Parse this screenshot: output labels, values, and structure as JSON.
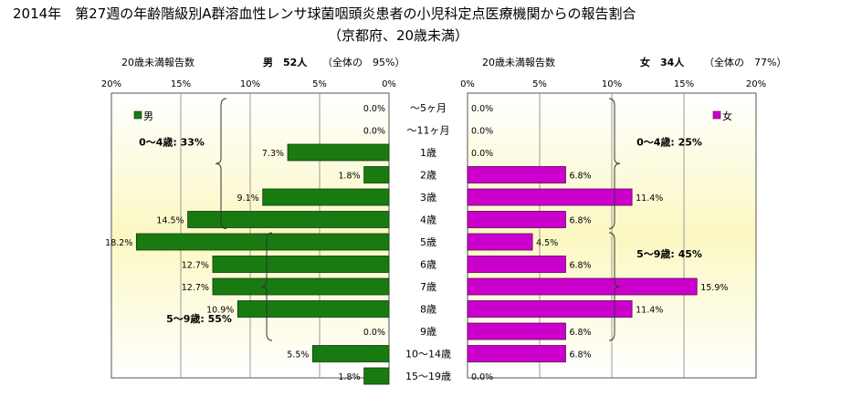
{
  "chart_data": {
    "type": "bar",
    "title": "2014年　第27週の年齢階級別A群溶血性レンサ球菌咽頭炎患者の小児科定点医療機関からの報告割合",
    "subtitle": "（京都府、20歳未満）",
    "categories": [
      "～5ヶ月",
      "～11ヶ月",
      "1歳",
      "2歳",
      "3歳",
      "4歳",
      "5歳",
      "6歳",
      "7歳",
      "8歳",
      "9歳",
      "10～14歳",
      "15～19歳"
    ],
    "xlim": [
      0,
      20
    ],
    "tick_values": [
      0,
      5,
      10,
      15,
      20
    ],
    "tick_labels_left": [
      "20%",
      "15%",
      "10%",
      "5%",
      "0%"
    ],
    "tick_labels_right": [
      "0%",
      "5%",
      "10%",
      "15%",
      "20%"
    ],
    "series": [
      {
        "name": "男",
        "side": "left",
        "color": "#1a7a12",
        "header_label": "20歳未満報告数",
        "header_count": "男　52人",
        "header_share": "（全体の　95%）",
        "values": [
          0.0,
          0.0,
          7.3,
          1.8,
          9.1,
          14.5,
          18.2,
          12.7,
          12.7,
          10.9,
          0.0,
          5.5,
          1.8
        ],
        "labels": [
          "0.0%",
          "0.0%",
          "7.3%",
          "1.8%",
          "9.1%",
          "14.5%",
          "18.2%",
          "12.7%",
          "12.7%",
          "10.9%",
          "0.0%",
          "5.5%",
          "1.8%"
        ],
        "groups": [
          {
            "label": "0～4歳: 33%",
            "from": 0,
            "to": 5
          },
          {
            "label": "5～9歳: 55%",
            "from": 6,
            "to": 10
          }
        ]
      },
      {
        "name": "女",
        "side": "right",
        "color": "#cc00cc",
        "header_label": "20歳未満報告数",
        "header_count": "女　34人",
        "header_share": "（全体の　77%）",
        "values": [
          0.0,
          0.0,
          0.0,
          6.8,
          11.4,
          6.8,
          4.5,
          6.8,
          15.9,
          11.4,
          6.8,
          6.8,
          0.0
        ],
        "labels": [
          "0.0%",
          "0.0%",
          "0.0%",
          "6.8%",
          "11.4%",
          "6.8%",
          "4.5%",
          "6.8%",
          "15.9%",
          "11.4%",
          "6.8%",
          "6.8%",
          "0.0%"
        ],
        "groups": [
          {
            "label": "0～4歳: 25%",
            "from": 0,
            "to": 5
          },
          {
            "label": "5～9歳: 45%",
            "from": 6,
            "to": 10
          }
        ]
      }
    ]
  }
}
